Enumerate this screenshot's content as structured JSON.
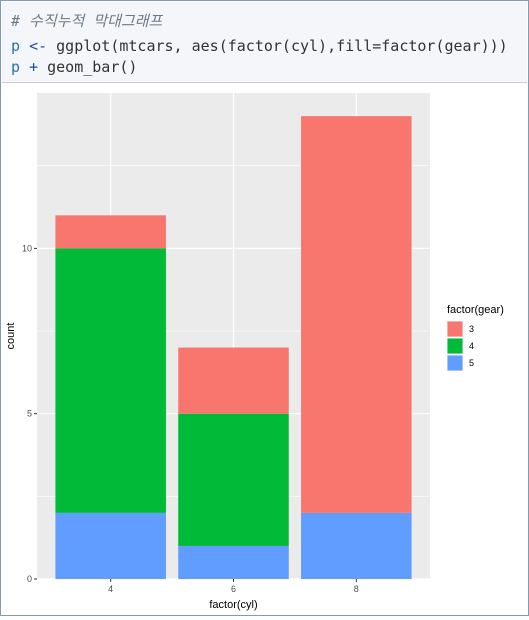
{
  "code": {
    "comment": "# 수직누적 막대그래프",
    "line2_var": "p",
    "line2_op": "<-",
    "line2_rest": " ggplot(mtcars, aes(factor(cyl),fill=factor(gear)))",
    "line3_var": "p",
    "line3_op": "+",
    "line3_rest": " geom_bar()"
  },
  "colors": {
    "panel_bg": "#ebebeb",
    "grid_major": "#ffffff",
    "gear3": "#f8766d",
    "gear4": "#00ba38",
    "gear5": "#619cff"
  },
  "chart_data": {
    "type": "bar",
    "stacked": true,
    "categories": [
      "4",
      "6",
      "8"
    ],
    "series": [
      {
        "name": "3",
        "values": [
          1,
          2,
          12
        ]
      },
      {
        "name": "4",
        "values": [
          8,
          4,
          0
        ]
      },
      {
        "name": "5",
        "values": [
          2,
          1,
          2
        ]
      }
    ],
    "xlabel": "factor(cyl)",
    "ylabel": "count",
    "ylim": [
      0,
      14.7
    ],
    "yticks": [
      0,
      5,
      10
    ],
    "ytick_labels": [
      "0",
      "5",
      "10"
    ],
    "legend_title": "factor(gear)",
    "legend_position": "right",
    "grid": true
  }
}
